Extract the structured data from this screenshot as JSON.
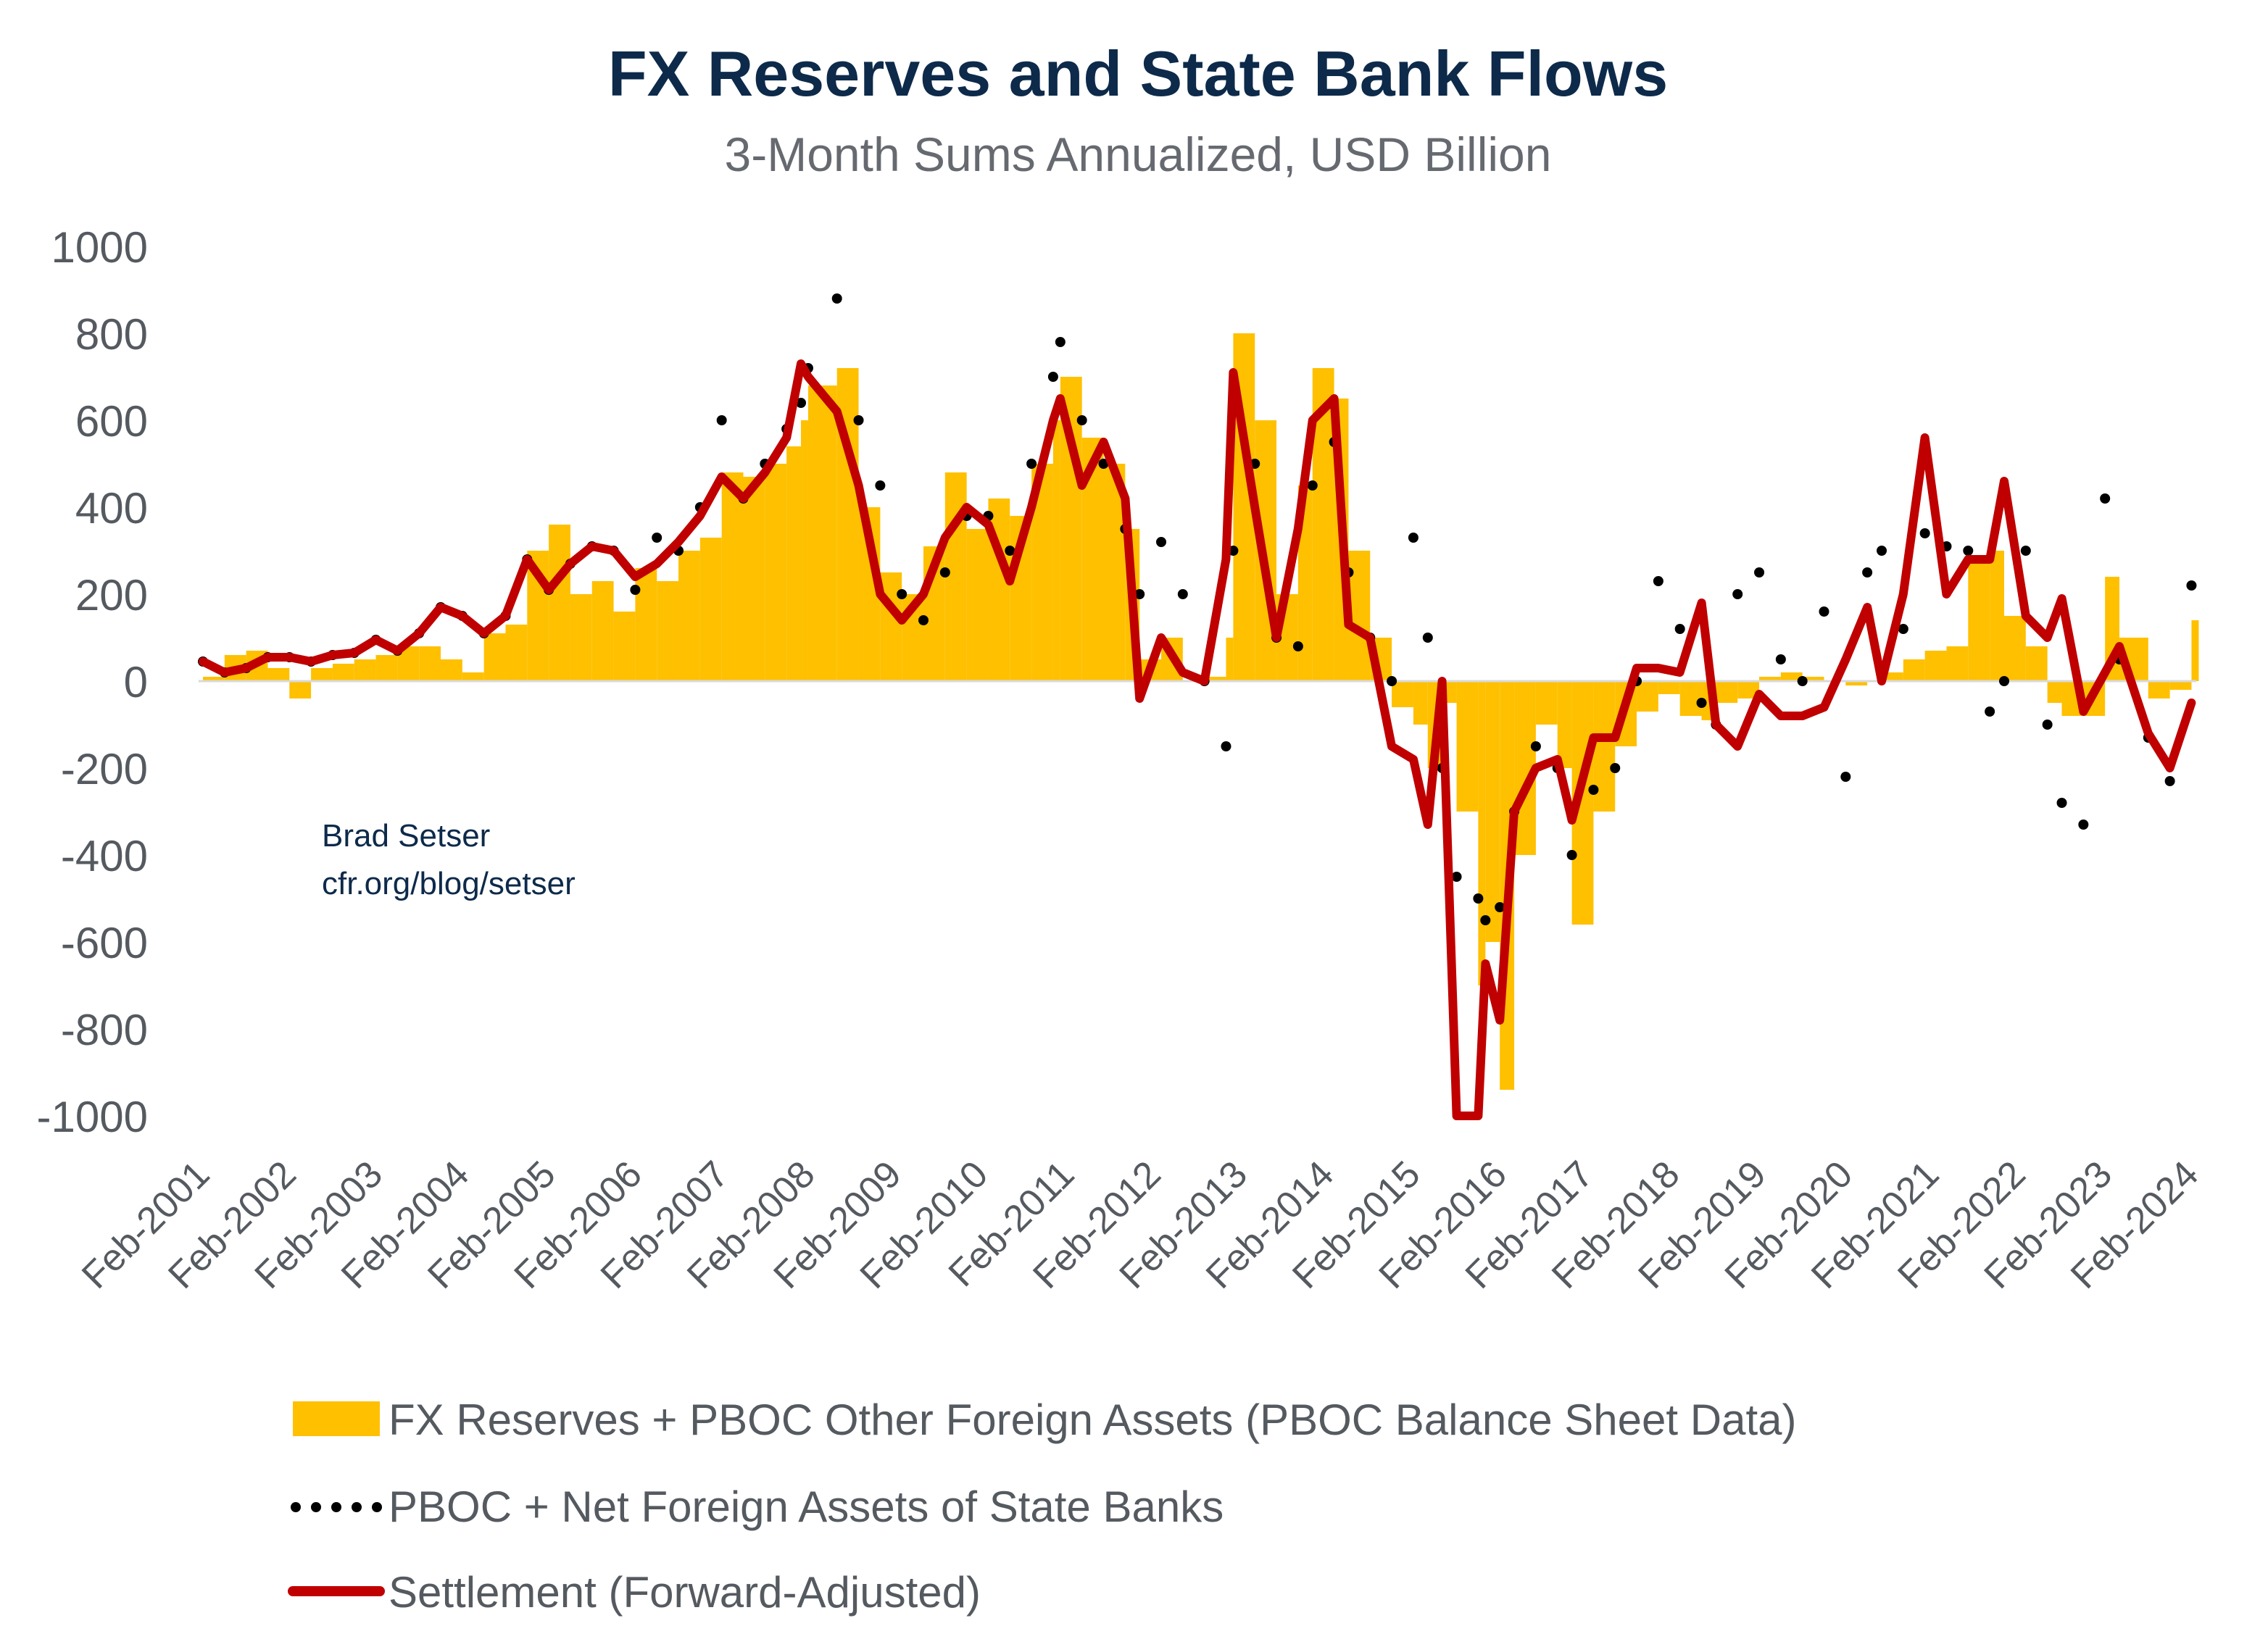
{
  "chart_data": {
    "type": "bar+line+scatter",
    "title": "FX Reserves and State Bank Flows",
    "subtitle": "3-Month Sums Annualized, USD Billion",
    "annotation": [
      "Brad Setser",
      "cfr.org/blog/setser"
    ],
    "ylim": [
      -1000,
      1000
    ],
    "yticks": [
      1000,
      800,
      600,
      400,
      200,
      0,
      -200,
      -400,
      -600,
      -800,
      -1000
    ],
    "xticks": [
      "Feb-2001",
      "Feb-2002",
      "Feb-2003",
      "Feb-2004",
      "Feb-2005",
      "Feb-2006",
      "Feb-2007",
      "Feb-2008",
      "Feb-2009",
      "Feb-2010",
      "Feb-2011",
      "Feb-2012",
      "Feb-2013",
      "Feb-2014",
      "Feb-2015",
      "Feb-2016",
      "Feb-2017",
      "Feb-2018",
      "Feb-2019",
      "Feb-2020",
      "Feb-2021",
      "Feb-2022",
      "Feb-2023",
      "Feb-2024"
    ],
    "grid": false,
    "legend_position": "bottom",
    "colors": {
      "bars": "#ffc000",
      "dots": "#000000",
      "line": "#c00000",
      "zero_line": "#d9d9d9",
      "title": "#0d2a4a"
    },
    "x": [
      "2001-02",
      "2001-05",
      "2001-08",
      "2001-11",
      "2002-02",
      "2002-05",
      "2002-08",
      "2002-11",
      "2003-02",
      "2003-05",
      "2003-08",
      "2003-11",
      "2004-02",
      "2004-05",
      "2004-08",
      "2004-11",
      "2005-02",
      "2005-05",
      "2005-08",
      "2005-11",
      "2006-02",
      "2006-05",
      "2006-08",
      "2006-11",
      "2007-02",
      "2007-05",
      "2007-08",
      "2007-11",
      "2008-01",
      "2008-02",
      "2008-06",
      "2008-09",
      "2008-12",
      "2009-03",
      "2009-06",
      "2009-09",
      "2009-12",
      "2010-03",
      "2010-06",
      "2010-09",
      "2010-12",
      "2011-01",
      "2011-04",
      "2011-07",
      "2011-10",
      "2011-12",
      "2012-03",
      "2012-06",
      "2012-09",
      "2012-12",
      "2013-01",
      "2013-04",
      "2013-07",
      "2013-10",
      "2013-12",
      "2014-03",
      "2014-05",
      "2014-08",
      "2014-11",
      "2015-02",
      "2015-04",
      "2015-06",
      "2015-08",
      "2015-11",
      "2015-12",
      "2016-02",
      "2016-04",
      "2016-07",
      "2016-10",
      "2016-12",
      "2017-03",
      "2017-06",
      "2017-09",
      "2017-12",
      "2018-03",
      "2018-06",
      "2018-08",
      "2018-11",
      "2019-02",
      "2019-05",
      "2019-08",
      "2019-11",
      "2020-02",
      "2020-05",
      "2020-07",
      "2020-10",
      "2021-01",
      "2021-04",
      "2021-07",
      "2021-10",
      "2021-12",
      "2022-03",
      "2022-06",
      "2022-08",
      "2022-11",
      "2023-02",
      "2023-04",
      "2023-08",
      "2023-11",
      "2024-02"
    ],
    "series": [
      {
        "name": "FX Reserves + PBOC Other Foreign Assets (PBOC Balance Sheet Data)",
        "kind": "bar",
        "values": [
          10,
          60,
          70,
          30,
          -40,
          30,
          40,
          50,
          60,
          80,
          80,
          50,
          20,
          110,
          130,
          300,
          360,
          200,
          230,
          160,
          260,
          230,
          300,
          330,
          480,
          470,
          500,
          540,
          600,
          680,
          720,
          400,
          250,
          200,
          310,
          480,
          350,
          420,
          380,
          500,
          600,
          700,
          560,
          500,
          350,
          50,
          100,
          0,
          10,
          100,
          800,
          600,
          200,
          450,
          720,
          650,
          300,
          100,
          -60,
          -100,
          -200,
          -50,
          -300,
          -700,
          -600,
          -940,
          -400,
          -100,
          -200,
          -560,
          -300,
          -150,
          -70,
          -30,
          -80,
          -90,
          -50,
          -40,
          10,
          20,
          10,
          0,
          -10,
          0,
          20,
          50,
          70,
          80,
          270,
          300,
          150,
          80,
          -50,
          -80,
          -80,
          240,
          100,
          -40,
          -20,
          140
        ]
      },
      {
        "name": "PBOC + Net Foreign Assets of State Banks",
        "kind": "dots",
        "values": [
          45,
          20,
          30,
          55,
          55,
          45,
          60,
          65,
          95,
          70,
          110,
          170,
          150,
          110,
          150,
          280,
          210,
          270,
          310,
          300,
          210,
          330,
          300,
          400,
          600,
          420,
          500,
          580,
          640,
          720,
          880,
          600,
          450,
          200,
          140,
          250,
          380,
          380,
          300,
          500,
          700,
          780,
          600,
          500,
          350,
          200,
          320,
          200,
          0,
          -150,
          300,
          500,
          100,
          80,
          450,
          550,
          250,
          100,
          0,
          330,
          100,
          -200,
          -450,
          -500,
          -550,
          -520,
          -300,
          -150,
          -200,
          -400,
          -250,
          -200,
          0,
          230,
          120,
          -50,
          -100,
          200,
          250,
          50,
          0,
          160,
          -220,
          250,
          300,
          120,
          340,
          310,
          300,
          -70,
          0,
          300,
          -100,
          -280,
          -330,
          420,
          50,
          -130,
          -230,
          220
        ]
      },
      {
        "name": "Settlement (Forward-Adjusted)",
        "kind": "line",
        "values": [
          45,
          20,
          30,
          55,
          55,
          45,
          60,
          65,
          95,
          70,
          110,
          170,
          150,
          110,
          150,
          280,
          210,
          270,
          310,
          300,
          240,
          270,
          320,
          380,
          470,
          420,
          480,
          560,
          730,
          700,
          620,
          450,
          200,
          140,
          200,
          330,
          400,
          360,
          230,
          400,
          600,
          650,
          450,
          550,
          420,
          -40,
          100,
          20,
          0,
          280,
          710,
          400,
          100,
          350,
          600,
          650,
          130,
          100,
          -150,
          -180,
          -330,
          0,
          -1000,
          -1000,
          -650,
          -780,
          -300,
          -200,
          -180,
          -320,
          -130,
          -130,
          30,
          30,
          20,
          180,
          -100,
          -150,
          -30,
          -80,
          -80,
          -60,
          50,
          170,
          0,
          200,
          560,
          200,
          280,
          280,
          460,
          150,
          100,
          190,
          -70,
          20,
          80,
          -120,
          -200,
          -50
        ]
      }
    ]
  }
}
